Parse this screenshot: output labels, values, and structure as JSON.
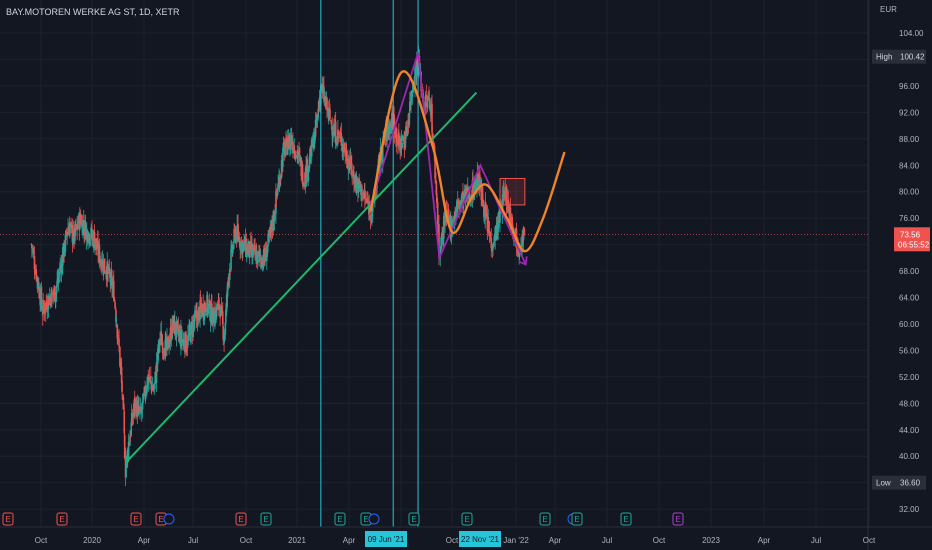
{
  "symbol_title": "BAY.MOTOREN WERKE AG ST, 1D, XETR",
  "currency": "EUR",
  "colors": {
    "background": "#131722",
    "grid": "#1e222d",
    "text": "#b2b5be",
    "up": "#26a69a",
    "down": "#ef5350",
    "trendline": "#1fb86a",
    "sine": "#f0842a",
    "pattern": "#9c27b0",
    "vline": "#26c6da",
    "box": "#ef5350",
    "earnings_red": "#ef5350",
    "earnings_green": "#26a69a",
    "earnings_purple": "#b03fd0"
  },
  "price_axis": {
    "ticks": [
      "104.00",
      "100.00",
      "96.00",
      "92.00",
      "88.00",
      "84.00",
      "80.00",
      "76.00",
      "72.00",
      "68.00",
      "64.00",
      "60.00",
      "56.00",
      "52.00",
      "48.00",
      "44.00",
      "40.00",
      "36.00",
      "32.00"
    ]
  },
  "badges": {
    "high": {
      "label": "High",
      "value": "100.42"
    },
    "low": {
      "label": "Low",
      "value": "36.60"
    },
    "last": {
      "price": "73.56",
      "countdown": "06:55:52"
    }
  },
  "time_axis": {
    "labels": [
      "Oct",
      "2020",
      "Apr",
      "Jul",
      "Oct",
      "2021",
      "Apr",
      "Jul",
      "Oct",
      "Jan '22",
      "Apr",
      "Jul",
      "Oct",
      "2023",
      "Apr",
      "Jul",
      "Oct"
    ],
    "highlights": [
      "09 Jun '21",
      "22 Nov '21"
    ]
  },
  "earnings_markers": [
    {
      "letter": "E",
      "color": "red"
    },
    {
      "letter": "E",
      "color": "red"
    },
    {
      "letter": "E",
      "color": "red"
    },
    {
      "letter": "E",
      "color": "red"
    },
    {
      "letter": "D",
      "color": "blue"
    },
    {
      "letter": "E",
      "color": "red"
    },
    {
      "letter": "E",
      "color": "green"
    },
    {
      "letter": "E",
      "color": "green"
    },
    {
      "letter": "E",
      "color": "green"
    },
    {
      "letter": "D",
      "color": "blue"
    },
    {
      "letter": "E",
      "color": "green"
    },
    {
      "letter": "E",
      "color": "green"
    },
    {
      "letter": "E",
      "color": "green"
    },
    {
      "letter": "D",
      "color": "blue"
    },
    {
      "letter": "E",
      "color": "green"
    },
    {
      "letter": "E",
      "color": "green"
    },
    {
      "letter": "E",
      "color": "purple"
    }
  ],
  "chart_data": {
    "type": "candlestick",
    "title": "BAY.MOTOREN WERKE AG ST, 1D, XETR",
    "ylabel": "EUR",
    "ylim": [
      30,
      108
    ],
    "x_range": [
      "2019-08-15",
      "2023-11-30"
    ],
    "series": [
      {
        "close_path": [
          [
            "2019-08-15",
            72
          ],
          [
            "2019-08-28",
            67
          ],
          [
            "2019-09-10",
            62
          ],
          [
            "2019-09-25",
            64
          ],
          [
            "2019-10-10",
            65
          ],
          [
            "2019-10-25",
            70
          ],
          [
            "2019-11-08",
            75
          ],
          [
            "2019-11-20",
            73
          ],
          [
            "2019-12-05",
            76
          ],
          [
            "2019-12-20",
            74
          ],
          [
            "2020-01-05",
            73
          ],
          [
            "2020-01-20",
            70
          ],
          [
            "2020-02-05",
            68
          ],
          [
            "2020-02-20",
            65
          ],
          [
            "2020-03-02",
            57
          ],
          [
            "2020-03-10",
            50
          ],
          [
            "2020-03-18",
            38
          ],
          [
            "2020-03-25",
            42
          ],
          [
            "2020-04-08",
            48
          ],
          [
            "2020-04-22",
            46
          ],
          [
            "2020-05-08",
            52
          ],
          [
            "2020-05-22",
            50
          ],
          [
            "2020-06-05",
            58
          ],
          [
            "2020-06-20",
            56
          ],
          [
            "2020-07-05",
            60
          ],
          [
            "2020-07-20",
            58
          ],
          [
            "2020-08-05",
            57
          ],
          [
            "2020-08-20",
            60
          ],
          [
            "2020-09-05",
            62
          ],
          [
            "2020-09-20",
            63
          ],
          [
            "2020-10-05",
            61
          ],
          [
            "2020-10-20",
            63
          ],
          [
            "2020-10-30",
            58
          ],
          [
            "2020-11-10",
            68
          ],
          [
            "2020-11-25",
            74
          ],
          [
            "2020-12-10",
            72
          ],
          [
            "2020-12-28",
            71
          ],
          [
            "2021-01-15",
            70
          ],
          [
            "2021-02-01",
            70
          ],
          [
            "2021-02-15",
            74
          ],
          [
            "2021-03-01",
            80
          ],
          [
            "2021-03-15",
            86
          ],
          [
            "2021-04-01",
            88
          ],
          [
            "2021-04-15",
            86
          ],
          [
            "2021-05-01",
            82
          ],
          [
            "2021-05-15",
            85
          ],
          [
            "2021-05-30",
            90
          ],
          [
            "2021-06-09",
            96
          ],
          [
            "2021-06-25",
            92
          ],
          [
            "2021-07-10",
            89
          ],
          [
            "2021-07-25",
            88
          ],
          [
            "2021-08-10",
            85
          ],
          [
            "2021-08-25",
            82
          ],
          [
            "2021-09-10",
            80
          ],
          [
            "2021-09-25",
            78
          ],
          [
            "2021-10-05",
            77
          ],
          [
            "2021-10-20",
            84
          ],
          [
            "2021-11-05",
            89
          ],
          [
            "2021-11-22",
            91
          ],
          [
            "2021-12-05",
            87
          ],
          [
            "2021-12-20",
            88
          ],
          [
            "2022-01-05",
            96
          ],
          [
            "2022-01-18",
            100
          ],
          [
            "2022-02-01",
            93
          ],
          [
            "2022-02-15",
            94
          ],
          [
            "2022-03-01",
            80
          ],
          [
            "2022-03-08",
            70
          ],
          [
            "2022-03-20",
            76
          ],
          [
            "2022-04-05",
            75
          ],
          [
            "2022-04-20",
            78
          ],
          [
            "2022-05-05",
            79
          ],
          [
            "2022-05-20",
            80
          ],
          [
            "2022-06-05",
            82
          ],
          [
            "2022-06-20",
            77
          ],
          [
            "2022-07-05",
            72
          ],
          [
            "2022-07-20",
            75
          ],
          [
            "2022-08-05",
            80
          ],
          [
            "2022-08-20",
            76
          ],
          [
            "2022-09-05",
            72
          ],
          [
            "2022-09-20",
            73.56
          ]
        ]
      }
    ],
    "last_price": 73.56,
    "high": 100.42,
    "low": 36.6,
    "annotations": {
      "trendline": [
        [
          "2020-03-18",
          39
        ],
        [
          "2022-06-01",
          95
        ]
      ],
      "vertical_lines": [
        "2021-06-09",
        "2021-11-22",
        "2022-01-18"
      ],
      "box": {
        "from": [
          "2022-07-25",
          82
        ],
        "to": [
          "2022-09-20",
          78
        ]
      },
      "pattern_path": [
        [
          "2021-10-01",
          78
        ],
        [
          "2022-01-18",
          101
        ],
        [
          "2022-03-08",
          70
        ],
        [
          "2022-06-10",
          84
        ],
        [
          "2022-09-22",
          69
        ]
      ],
      "sine_path": [
        [
          "2021-10-01",
          77
        ],
        [
          "2021-12-10",
          98
        ],
        [
          "2022-02-20",
          87
        ],
        [
          "2022-04-05",
          74
        ],
        [
          "2022-05-20",
          79
        ],
        [
          "2022-06-25",
          81
        ],
        [
          "2022-08-10",
          76
        ],
        [
          "2022-09-20",
          71
        ],
        [
          "2022-11-01",
          76
        ],
        [
          "2022-12-20",
          86
        ]
      ]
    }
  }
}
